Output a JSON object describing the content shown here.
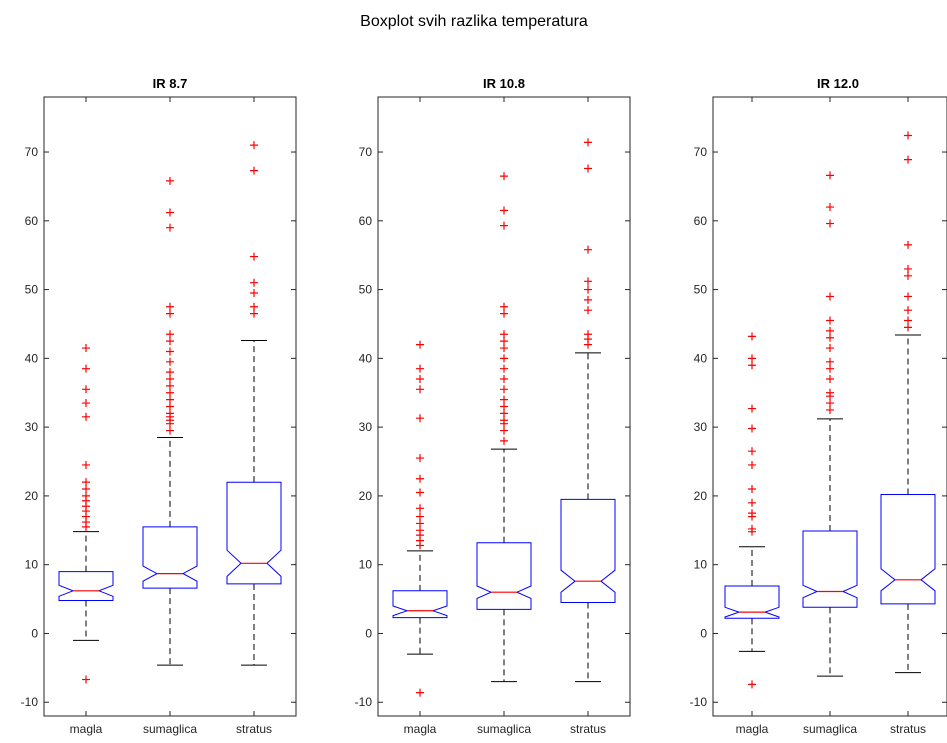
{
  "figure_title": "Boxplot svih razlika temperatura",
  "chart_data": [
    {
      "type": "boxplot",
      "title": "IR 8.7",
      "categories": [
        "magla",
        "sumaglica",
        "stratus"
      ],
      "ylim": [
        -12,
        78
      ],
      "yticks": [
        -10,
        0,
        10,
        20,
        30,
        40,
        50,
        60,
        70
      ],
      "notched": true,
      "colors": {
        "box": "#0000ff",
        "median": "#ff0000",
        "whisker": "#000000",
        "outlier": "#ff0000"
      },
      "boxes": [
        {
          "name": "magla",
          "lower_whisker": -1,
          "q1": 4.8,
          "median": 6.2,
          "q3": 9,
          "upper_whisker": 14.8,
          "notch": [
            5.4,
            7.0
          ],
          "outliers": [
            -6.7,
            15.5,
            16.2,
            17.0,
            17.8,
            18.5,
            19.3,
            20.0,
            21.0,
            22.0,
            24.5,
            31.5,
            33.5,
            35.5,
            38.5,
            41.5
          ]
        },
        {
          "name": "sumaglica",
          "lower_whisker": -4.6,
          "q1": 6.6,
          "median": 8.7,
          "q3": 15.5,
          "upper_whisker": 28.5,
          "notch": [
            7.6,
            9.8
          ],
          "outliers": [
            29.5,
            30.5,
            31.0,
            31.5,
            32.0,
            33.0,
            34.0,
            35.0,
            36.0,
            37.0,
            38.0,
            39.5,
            41.0,
            42.5,
            43.5,
            46.5,
            47.5,
            59.0,
            61.2,
            65.8
          ]
        },
        {
          "name": "stratus",
          "lower_whisker": -4.6,
          "q1": 7.2,
          "median": 10.2,
          "q3": 22,
          "upper_whisker": 42.6,
          "notch": [
            8.3,
            12.1
          ],
          "outliers": [
            46.5,
            47.5,
            49.5,
            51.0,
            54.8,
            67.3,
            71.0
          ]
        }
      ]
    },
    {
      "type": "boxplot",
      "title": "IR 10.8",
      "categories": [
        "magla",
        "sumaglica",
        "stratus"
      ],
      "ylim": [
        -12,
        78
      ],
      "yticks": [
        -10,
        0,
        10,
        20,
        30,
        40,
        50,
        60,
        70
      ],
      "notched": true,
      "colors": {
        "box": "#0000ff",
        "median": "#ff0000",
        "whisker": "#000000",
        "outlier": "#ff0000"
      },
      "boxes": [
        {
          "name": "magla",
          "lower_whisker": -3,
          "q1": 2.3,
          "median": 3.3,
          "q3": 6.2,
          "upper_whisker": 12,
          "notch": [
            2.6,
            4.0
          ],
          "outliers": [
            -8.6,
            12.8,
            13.5,
            14.3,
            15.0,
            16.0,
            17.0,
            18.2,
            20.5,
            22.5,
            25.5,
            31.3,
            35.5,
            37.0,
            38.5,
            42.0
          ]
        },
        {
          "name": "sumaglica",
          "lower_whisker": -7,
          "q1": 3.5,
          "median": 6,
          "q3": 13.2,
          "upper_whisker": 26.8,
          "notch": [
            5.1,
            6.9
          ],
          "outliers": [
            28.0,
            29.5,
            30.5,
            31.0,
            32.0,
            33.0,
            34.0,
            35.5,
            37.0,
            38.5,
            40.0,
            41.5,
            42.5,
            43.5,
            46.5,
            47.5,
            59.3,
            61.5,
            66.5
          ]
        },
        {
          "name": "stratus",
          "lower_whisker": -7,
          "q1": 4.5,
          "median": 7.6,
          "q3": 19.5,
          "upper_whisker": 40.8,
          "notch": [
            6.0,
            9.2
          ],
          "outliers": [
            42.0,
            42.8,
            43.5,
            47.0,
            48.5,
            50.0,
            51.2,
            55.8,
            67.6,
            71.4
          ]
        }
      ]
    },
    {
      "type": "boxplot",
      "title": "IR 12.0",
      "categories": [
        "magla",
        "sumaglica",
        "stratus"
      ],
      "ylim": [
        -12,
        78
      ],
      "yticks": [
        -10,
        0,
        10,
        20,
        30,
        40,
        50,
        60,
        70
      ],
      "notched": true,
      "colors": {
        "box": "#0000ff",
        "median": "#ff0000",
        "whisker": "#000000",
        "outlier": "#ff0000"
      },
      "boxes": [
        {
          "name": "magla",
          "lower_whisker": -2.6,
          "q1": 2.2,
          "median": 3.1,
          "q3": 6.9,
          "upper_whisker": 12.6,
          "notch": [
            2.4,
            3.8
          ],
          "outliers": [
            -7.4,
            14.8,
            15.2,
            17.0,
            17.5,
            19.0,
            21.0,
            24.5,
            26.5,
            29.8,
            32.7,
            39.0,
            40.0,
            43.2
          ]
        },
        {
          "name": "sumaglica",
          "lower_whisker": -6.2,
          "q1": 3.8,
          "median": 6.1,
          "q3": 14.9,
          "upper_whisker": 31.2,
          "notch": [
            5.2,
            7.0
          ],
          "outliers": [
            32.5,
            33.5,
            34.5,
            35.0,
            37.0,
            38.5,
            39.5,
            41.5,
            43.0,
            44.0,
            45.5,
            49.0,
            59.6,
            62.0,
            66.6
          ]
        },
        {
          "name": "stratus",
          "lower_whisker": -5.7,
          "q1": 4.3,
          "median": 7.8,
          "q3": 20.2,
          "upper_whisker": 43.4,
          "notch": [
            6.2,
            9.4
          ],
          "outliers": [
            44.5,
            45.5,
            47.0,
            49.0,
            52.0,
            53.0,
            56.5,
            68.9,
            72.4
          ]
        }
      ]
    }
  ]
}
